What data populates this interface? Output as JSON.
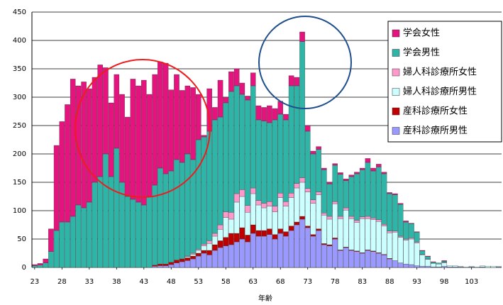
{
  "chart_data": {
    "type": "stacked_bar",
    "x_label": "年齢",
    "x": [
      23,
      24,
      25,
      26,
      27,
      28,
      29,
      30,
      31,
      32,
      33,
      34,
      35,
      36,
      37,
      38,
      39,
      40,
      41,
      42,
      43,
      44,
      45,
      46,
      47,
      48,
      49,
      50,
      51,
      52,
      53,
      54,
      55,
      56,
      57,
      58,
      59,
      60,
      61,
      62,
      63,
      64,
      65,
      66,
      67,
      68,
      69,
      70,
      71,
      72,
      73,
      74,
      75,
      76,
      77,
      78,
      79,
      80,
      81,
      82,
      83,
      84,
      85,
      86,
      87,
      88,
      89,
      90,
      91,
      92,
      93,
      94,
      95,
      96,
      97,
      98,
      99,
      100,
      101,
      102,
      103,
      104,
      105,
      106,
      107,
      108
    ],
    "xlim": [
      22.5,
      108.5
    ],
    "xticks": [
      23,
      28,
      33,
      38,
      43,
      48,
      53,
      58,
      63,
      68,
      73,
      78,
      83,
      88,
      93,
      98,
      103
    ],
    "ylim": [
      0,
      450
    ],
    "yticks": [
      0,
      50,
      100,
      150,
      200,
      250,
      300,
      350,
      400,
      450
    ],
    "grid": true,
    "series": [
      {
        "name": "産科診療所男性",
        "color": "#9999ff",
        "values": [
          0,
          0,
          0,
          0,
          0,
          0,
          0,
          0,
          0,
          0,
          0,
          0,
          0,
          0,
          0,
          0,
          0,
          0,
          0,
          0,
          0,
          0,
          2,
          3,
          3,
          5,
          8,
          10,
          12,
          15,
          20,
          25,
          22,
          30,
          35,
          38,
          40,
          45,
          50,
          45,
          60,
          55,
          55,
          58,
          50,
          60,
          55,
          65,
          75,
          85,
          70,
          55,
          65,
          40,
          38,
          50,
          30,
          35,
          30,
          28,
          25,
          30,
          28,
          25,
          22,
          15,
          12,
          8,
          6,
          5,
          3,
          2,
          2,
          1,
          1,
          2,
          1,
          1,
          1,
          0,
          1,
          0,
          1,
          0,
          0,
          1
        ]
      },
      {
        "name": "産科診療所女性",
        "color": "#c00000",
        "values": [
          0,
          0,
          0,
          0,
          0,
          0,
          0,
          0,
          0,
          0,
          0,
          0,
          0,
          0,
          0,
          0,
          0,
          0,
          0,
          0,
          0,
          0,
          2,
          3,
          3,
          4,
          5,
          5,
          5,
          5,
          5,
          5,
          8,
          10,
          12,
          15,
          20,
          15,
          20,
          12,
          15,
          10,
          10,
          10,
          8,
          8,
          8,
          8,
          5,
          5,
          3,
          3,
          3,
          2,
          2,
          2,
          1,
          1,
          1,
          1,
          1,
          1,
          1,
          1,
          1,
          1,
          0,
          0,
          0,
          0,
          0,
          0,
          0,
          0,
          0,
          0,
          0,
          0,
          0,
          0,
          0,
          0,
          0,
          0,
          0,
          0
        ]
      },
      {
        "name": "婦人科診療所男性",
        "color": "#ccffff",
        "values": [
          0,
          0,
          0,
          0,
          0,
          0,
          0,
          0,
          0,
          0,
          0,
          0,
          0,
          0,
          0,
          0,
          0,
          0,
          0,
          0,
          0,
          0,
          0,
          0,
          0,
          0,
          0,
          0,
          2,
          3,
          5,
          8,
          12,
          15,
          20,
          35,
          25,
          55,
          55,
          40,
          55,
          45,
          40,
          40,
          40,
          55,
          45,
          50,
          60,
          60,
          60,
          55,
          60,
          50,
          45,
          60,
          55,
          65,
          55,
          50,
          60,
          55,
          55,
          55,
          50,
          45,
          50,
          45,
          42,
          45,
          40,
          20,
          12,
          6,
          5,
          6,
          2,
          2,
          1,
          1,
          1,
          1,
          2,
          2,
          2,
          1
        ]
      },
      {
        "name": "婦人科診療所女性",
        "color": "#ff99cc",
        "values": [
          0,
          0,
          0,
          0,
          0,
          0,
          0,
          0,
          0,
          0,
          0,
          0,
          0,
          0,
          0,
          0,
          0,
          0,
          0,
          0,
          0,
          0,
          0,
          0,
          0,
          0,
          0,
          0,
          1,
          2,
          2,
          3,
          5,
          5,
          8,
          10,
          12,
          15,
          12,
          12,
          10,
          8,
          8,
          8,
          10,
          8,
          8,
          8,
          8,
          8,
          6,
          6,
          5,
          4,
          5,
          4,
          4,
          4,
          4,
          4,
          3,
          4,
          3,
          3,
          3,
          3,
          2,
          2,
          2,
          2,
          2,
          1,
          1,
          0,
          0,
          1,
          0,
          0,
          0,
          0,
          0,
          0,
          0,
          0,
          0,
          0
        ]
      },
      {
        "name": "学会男性",
        "color": "#2fb5a8",
        "values": [
          3,
          4,
          8,
          28,
          65,
          80,
          80,
          90,
          110,
          105,
          115,
          150,
          160,
          200,
          160,
          210,
          150,
          125,
          120,
          115,
          110,
          125,
          141,
          169,
          159,
          161,
          177,
          170,
          180,
          165,
          193,
          189,
          193,
          200,
          190,
          192,
          213,
          190,
          168,
          186,
          180,
          142,
          145,
          139,
          152,
          139,
          144,
          189,
          172,
          240,
          101,
          81,
          75,
          76,
          57,
          64,
          74,
          48,
          70,
          82,
          83,
          95,
          83,
          93,
          89,
          66,
          64,
          56,
          30,
          25,
          17,
          6,
          4,
          2,
          2,
          2,
          0,
          0,
          0,
          0,
          0,
          0,
          0,
          0,
          0,
          0
        ]
      },
      {
        "name": "学会女性",
        "color": "#e5137e",
        "values": [
          2,
          3,
          7,
          40,
          150,
          177,
          207,
          242,
          210,
          222,
          200,
          185,
          197,
          152,
          130,
          130,
          155,
          140,
          212,
          205,
          220,
          180,
          195,
          187,
          195,
          143,
          150,
          127,
          120,
          127,
          80,
          3,
          75,
          22,
          65,
          10,
          35,
          30,
          20,
          7,
          23,
          25,
          24,
          30,
          20,
          23,
          10,
          18,
          15,
          17,
          10,
          5,
          5,
          3,
          3,
          3,
          3,
          3,
          3,
          3,
          3,
          7,
          5,
          5,
          3,
          2,
          2,
          2,
          2,
          1,
          1,
          1,
          1,
          1,
          0,
          1,
          0,
          0,
          0,
          0,
          0,
          0,
          0,
          0,
          0,
          0
        ]
      }
    ]
  }
}
